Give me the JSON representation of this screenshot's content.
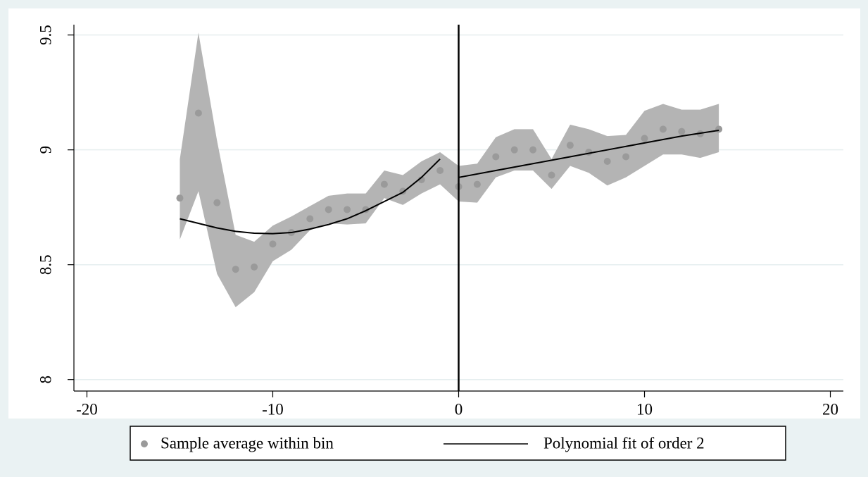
{
  "chart_data": {
    "type": "rdplot",
    "x": [
      -15,
      -14,
      -13,
      -12,
      -11,
      -10,
      -9,
      -8,
      -7,
      -6,
      -5,
      -4,
      -3,
      -2,
      -1,
      0,
      1,
      2,
      3,
      4,
      5,
      6,
      7,
      8,
      9,
      10,
      11,
      12,
      13,
      14
    ],
    "series": [
      {
        "name": "Sample average within bin",
        "color": "#9a9a9a",
        "values": [
          8.79,
          9.16,
          8.77,
          8.48,
          8.49,
          8.59,
          8.64,
          8.7,
          8.74,
          8.74,
          8.74,
          8.85,
          8.82,
          8.87,
          8.91,
          8.84,
          8.85,
          8.97,
          9.0,
          9.0,
          8.89,
          9.02,
          8.99,
          8.95,
          8.97,
          9.05,
          9.09,
          9.08,
          9.07,
          9.09
        ]
      },
      {
        "name": "Polynomial fit of order 2",
        "color": "#000000",
        "segments": [
          {
            "x": [
              -15,
              -14,
              -13,
              -12,
              -11,
              -10,
              -9,
              -8,
              -7,
              -6,
              -5,
              -4,
              -3,
              -2,
              -1
            ],
            "values": [
              8.7,
              8.68,
              8.66,
              8.645,
              8.637,
              8.635,
              8.64,
              8.655,
              8.675,
              8.7,
              8.735,
              8.775,
              8.815,
              8.88,
              8.96
            ]
          },
          {
            "x": [
              0,
              2,
              4,
              6,
              8,
              10,
              12,
              14
            ],
            "values": [
              8.88,
              8.91,
              8.94,
              8.97,
              9.0,
              9.03,
              9.06,
              9.085
            ]
          }
        ]
      }
    ],
    "ci_band": {
      "color": "#b4b4b4",
      "upper": [
        8.96,
        9.51,
        9.04,
        8.63,
        8.6,
        8.67,
        8.71,
        8.755,
        8.8,
        8.81,
        8.81,
        8.91,
        8.89,
        8.95,
        8.99,
        8.93,
        8.94,
        9.055,
        9.09,
        9.09,
        8.96,
        9.11,
        9.09,
        9.06,
        9.065,
        9.17,
        9.2,
        9.175,
        9.175,
        9.2
      ],
      "lower": [
        8.61,
        8.82,
        8.46,
        8.315,
        8.38,
        8.515,
        8.565,
        8.65,
        8.68,
        8.675,
        8.68,
        8.79,
        8.76,
        8.81,
        8.85,
        8.775,
        8.77,
        8.88,
        8.91,
        8.91,
        8.83,
        8.93,
        8.9,
        8.845,
        8.88,
        8.93,
        8.98,
        8.98,
        8.965,
        8.99
      ]
    },
    "vline": 0,
    "xlim": [
      -20.7,
      20.7
    ],
    "xticks": [
      -20,
      -10,
      0,
      10,
      20
    ],
    "ylim": [
      7.95,
      9.545
    ],
    "yticks": [
      8,
      8.5,
      9,
      9.5
    ],
    "grid": true
  }
}
